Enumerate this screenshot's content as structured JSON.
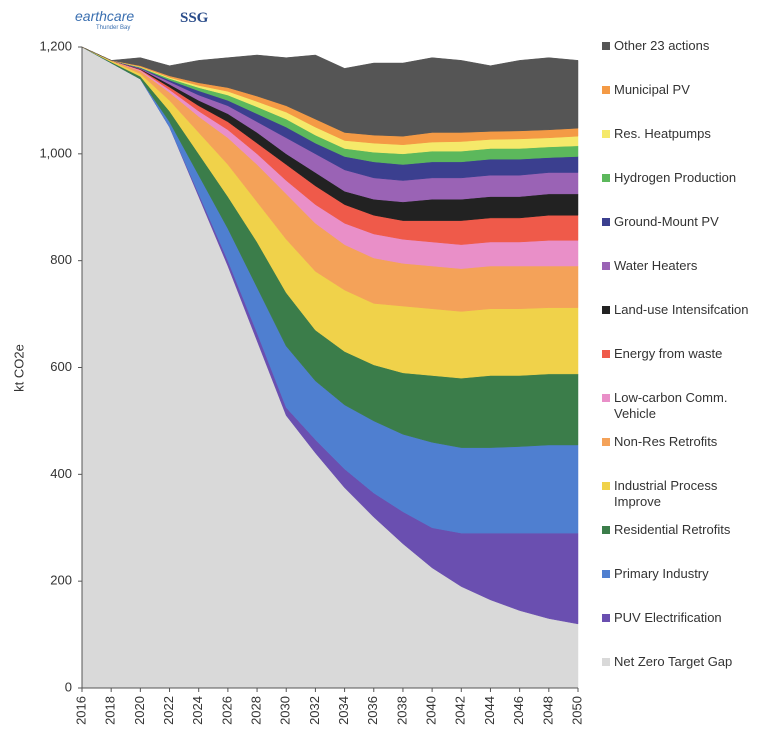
{
  "header": {
    "logo": "earthcare",
    "logo_sub": "Thunder Bay",
    "logo2": "SSG"
  },
  "chart_data": {
    "type": "stacked_area",
    "ylabel": "kt CO2e",
    "x": [
      2016,
      2018,
      2020,
      2022,
      2024,
      2026,
      2028,
      2030,
      2032,
      2034,
      2036,
      2038,
      2040,
      2042,
      2044,
      2046,
      2048,
      2050
    ],
    "xlim": [
      2016,
      2050
    ],
    "xticks": [
      2016,
      2018,
      2020,
      2022,
      2024,
      2026,
      2028,
      2030,
      2032,
      2034,
      2036,
      2038,
      2040,
      2042,
      2044,
      2046,
      2048,
      2050
    ],
    "ylim": [
      0,
      1200
    ],
    "yticks": [
      0,
      200,
      400,
      600,
      800,
      {
        "value": 1000,
        "label": "1,000"
      },
      {
        "value": 1200,
        "label": "1,200"
      }
    ],
    "series": [
      {
        "name": "Net Zero Target Gap",
        "color": "#d9d9d9",
        "values": [
          1200,
          1170,
          1140,
          1050,
          920,
          790,
          650,
          510,
          440,
          375,
          320,
          270,
          225,
          190,
          165,
          145,
          130,
          120
        ]
      },
      {
        "name": "PUV Electrification",
        "color": "#6a4fb0",
        "values": [
          0,
          0,
          0,
          0,
          5,
          10,
          15,
          15,
          25,
          35,
          45,
          60,
          75,
          100,
          125,
          145,
          160,
          170
        ]
      },
      {
        "name": "Primary Industry",
        "color": "#4f7fd0",
        "values": [
          0,
          0,
          0,
          10,
          35,
          60,
          85,
          115,
          110,
          120,
          135,
          145,
          160,
          160,
          160,
          162,
          165,
          165
        ]
      },
      {
        "name": "Residential Retrofits",
        "color": "#3b7d4a",
        "values": [
          0,
          2,
          5,
          20,
          40,
          60,
          85,
          100,
          95,
          100,
          105,
          115,
          125,
          130,
          135,
          133,
          133,
          133
        ]
      },
      {
        "name": "Industrial Process Improve",
        "color": "#f0d24a",
        "values": [
          0,
          2,
          5,
          20,
          40,
          60,
          75,
          100,
          110,
          115,
          115,
          125,
          125,
          125,
          125,
          125,
          124,
          124
        ]
      },
      {
        "name": "Non-Res Retrofits",
        "color": "#f4a259",
        "values": [
          0,
          1,
          5,
          15,
          30,
          50,
          70,
          85,
          90,
          85,
          85,
          80,
          80,
          80,
          80,
          80,
          78,
          78
        ]
      },
      {
        "name": "Low-carbon Comm. Vehicle",
        "color": "#e98fc8",
        "values": [
          0,
          0,
          2,
          5,
          10,
          15,
          20,
          25,
          35,
          40,
          45,
          45,
          45,
          45,
          45,
          45,
          48,
          48
        ]
      },
      {
        "name": "Energy from waste",
        "color": "#ef5a4a",
        "values": [
          0,
          0,
          1,
          5,
          10,
          15,
          20,
          30,
          35,
          35,
          35,
          35,
          40,
          45,
          45,
          45,
          47,
          47
        ]
      },
      {
        "name": "Land-use Intensifcation",
        "color": "#222222",
        "values": [
          0,
          0,
          1,
          5,
          10,
          15,
          20,
          20,
          25,
          25,
          30,
          35,
          40,
          40,
          40,
          40,
          40,
          40
        ]
      },
      {
        "name": "Water Heaters",
        "color": "#9a63b5",
        "values": [
          0,
          0,
          1,
          5,
          10,
          15,
          20,
          30,
          35,
          40,
          40,
          40,
          40,
          40,
          40,
          40,
          40,
          40
        ]
      },
      {
        "name": "Ground-Mount PV",
        "color": "#3b3f8f",
        "values": [
          0,
          0,
          1,
          3,
          8,
          10,
          15,
          20,
          20,
          25,
          30,
          30,
          30,
          30,
          30,
          30,
          28,
          30
        ]
      },
      {
        "name": "Hydrogen Production",
        "color": "#5cb85c",
        "values": [
          0,
          0,
          1,
          3,
          6,
          10,
          13,
          15,
          15,
          15,
          18,
          20,
          20,
          20,
          20,
          20,
          20,
          20
        ]
      },
      {
        "name": "Res. Heatpumps",
        "color": "#f5e96a",
        "values": [
          0,
          0,
          1,
          2,
          4,
          7,
          10,
          13,
          15,
          15,
          17,
          17,
          17,
          18,
          17,
          18,
          17,
          18
        ]
      },
      {
        "name": "Municipal PV",
        "color": "#f49a45",
        "values": [
          0,
          0,
          2,
          3,
          5,
          7,
          10,
          12,
          15,
          15,
          15,
          16,
          18,
          17,
          15,
          15,
          15,
          15
        ]
      },
      {
        "name": "Other 23 actions",
        "color": "#555555",
        "values": [
          0,
          0,
          15,
          19,
          42,
          56,
          77,
          90,
          120,
          120,
          135,
          137,
          140,
          135,
          123,
          132,
          135,
          127
        ]
      }
    ]
  }
}
